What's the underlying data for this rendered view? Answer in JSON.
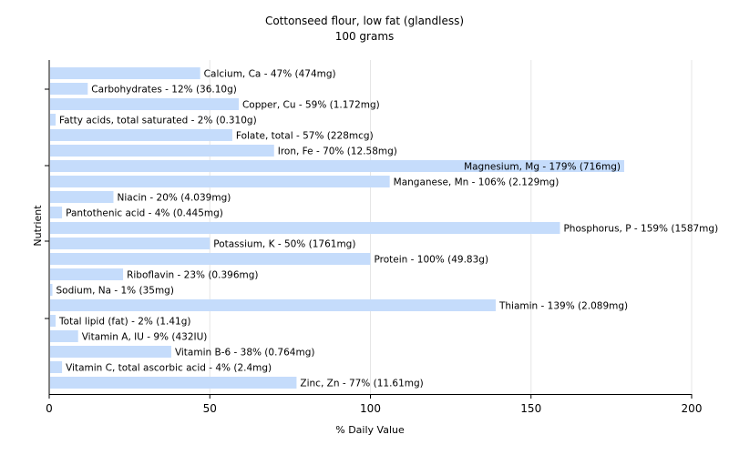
{
  "chart_data": {
    "type": "bar",
    "orientation": "horizontal",
    "title": "Cottonseed flour, low fat (glandless)",
    "subtitle": "100 grams",
    "xlabel": "% Daily Value",
    "ylabel": "Nutrient",
    "xlim": [
      0,
      200
    ],
    "xticks": [
      0,
      50,
      100,
      150,
      200
    ],
    "grid": "vertical",
    "bar_color": "#c5dcfb",
    "grid_color": "#e6e6e6",
    "categories": [
      "Calcium, Ca",
      "Carbohydrates",
      "Copper, Cu",
      "Fatty acids, total saturated",
      "Folate, total",
      "Iron, Fe",
      "Magnesium, Mg",
      "Manganese, Mn",
      "Niacin",
      "Pantothenic acid",
      "Phosphorus, P",
      "Potassium, K",
      "Protein",
      "Riboflavin",
      "Sodium, Na",
      "Thiamin",
      "Total lipid (fat)",
      "Vitamin A, IU",
      "Vitamin B-6",
      "Vitamin C, total ascorbic acid",
      "Zinc, Zn"
    ],
    "values": [
      47,
      12,
      59,
      2,
      57,
      70,
      179,
      106,
      20,
      4,
      159,
      50,
      100,
      23,
      1,
      139,
      2,
      9,
      38,
      4,
      77
    ],
    "labels": [
      "Calcium, Ca - 47% (474mg)",
      "Carbohydrates - 12% (36.10g)",
      "Copper, Cu - 59% (1.172mg)",
      "Fatty acids, total saturated - 2% (0.310g)",
      "Folate, total - 57% (228mcg)",
      "Iron, Fe - 70% (12.58mg)",
      "Magnesium, Mg - 179% (716mg)",
      "Manganese, Mn - 106% (2.129mg)",
      "Niacin - 20% (4.039mg)",
      "Pantothenic acid - 4% (0.445mg)",
      "Phosphorus, P - 159% (1587mg)",
      "Potassium, K - 50% (1761mg)",
      "Protein - 100% (49.83g)",
      "Riboflavin - 23% (0.396mg)",
      "Sodium, Na - 1% (35mg)",
      "Thiamin - 139% (2.089mg)",
      "Total lipid (fat) - 2% (1.41g)",
      "Vitamin A, IU - 9% (432IU)",
      "Vitamin B-6 - 38% (0.764mg)",
      "Vitamin C, total ascorbic acid - 4% (2.4mg)",
      "Zinc, Zn - 77% (11.61mg)"
    ]
  }
}
